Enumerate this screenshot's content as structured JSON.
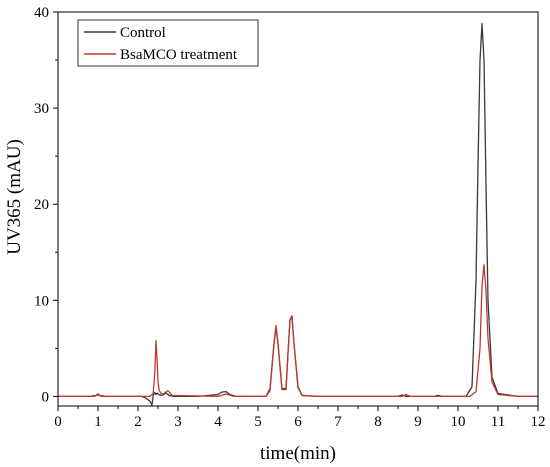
{
  "chart_data": {
    "type": "line",
    "title": "",
    "xlabel": "time(min)",
    "ylabel": "UV365 (mAU)",
    "xlim": [
      0,
      12
    ],
    "ylim": [
      -1,
      40
    ],
    "x_ticks": [
      0,
      1,
      2,
      3,
      4,
      5,
      6,
      7,
      8,
      9,
      10,
      11,
      12
    ],
    "y_ticks": [
      0,
      10,
      20,
      30,
      40
    ],
    "grid": false,
    "legend_position": "top-left",
    "series": [
      {
        "name": "Control",
        "color": "#3a3a3a",
        "x": [
          0,
          0.8,
          0.95,
          1.0,
          1.05,
          1.2,
          2.1,
          2.2,
          2.3,
          2.35,
          2.38,
          2.42,
          2.45,
          2.48,
          2.52,
          2.58,
          2.65,
          2.7,
          2.78,
          2.9,
          3.5,
          4.0,
          4.1,
          4.2,
          4.3,
          4.45,
          5.2,
          5.3,
          5.4,
          5.45,
          5.5,
          5.6,
          5.7,
          5.75,
          5.8,
          5.85,
          5.9,
          6.0,
          6.1,
          6.5,
          8.5,
          8.6,
          8.7,
          9.4,
          9.5,
          9.6,
          10.2,
          10.35,
          10.45,
          10.5,
          10.55,
          10.6,
          10.65,
          10.7,
          10.75,
          10.85,
          11.0,
          11.5,
          12
        ],
        "y": [
          0,
          0,
          0.1,
          0.25,
          0.1,
          0,
          0,
          -0.2,
          -0.5,
          -0.9,
          0.1,
          0.4,
          0.2,
          0.35,
          0.2,
          0.1,
          0.2,
          0.35,
          0.1,
          0,
          0,
          0.2,
          0.45,
          0.5,
          0.2,
          0,
          0,
          0.8,
          5.5,
          7.2,
          5.5,
          0.8,
          0.8,
          4.5,
          8.0,
          8.2,
          5.5,
          1.0,
          0.1,
          0,
          0,
          0.15,
          0,
          0,
          0.1,
          0,
          0,
          1.0,
          12.0,
          24.0,
          35.0,
          38.8,
          35.0,
          22.0,
          10.0,
          2.0,
          0.3,
          0,
          0
        ]
      },
      {
        "name": "BsaMCO treatment",
        "color": "#c0392b",
        "x": [
          0,
          0.9,
          1.0,
          1.1,
          2.3,
          2.38,
          2.42,
          2.45,
          2.48,
          2.5,
          2.53,
          2.58,
          2.62,
          2.68,
          2.75,
          2.85,
          4.0,
          4.2,
          4.4,
          5.2,
          5.3,
          5.4,
          5.45,
          5.5,
          5.6,
          5.7,
          5.75,
          5.8,
          5.85,
          5.9,
          6.0,
          6.1,
          6.5,
          8.6,
          8.7,
          8.8,
          10.3,
          10.45,
          10.55,
          10.6,
          10.65,
          10.7,
          10.75,
          10.85,
          11.0,
          11.5,
          12
        ],
        "y": [
          0,
          0,
          0.15,
          0,
          0,
          0.3,
          2.5,
          5.8,
          3.5,
          1.5,
          0.6,
          0.3,
          0.2,
          0.4,
          0.6,
          0.1,
          0,
          0.25,
          0,
          0,
          0.6,
          5.5,
          7.4,
          5.5,
          0.7,
          0.7,
          4.5,
          8.0,
          8.4,
          5.5,
          0.9,
          0.1,
          0,
          0,
          0.2,
          0,
          0,
          0.5,
          5.0,
          11.5,
          13.7,
          11.0,
          6.0,
          1.5,
          0.2,
          0,
          0
        ]
      }
    ]
  }
}
